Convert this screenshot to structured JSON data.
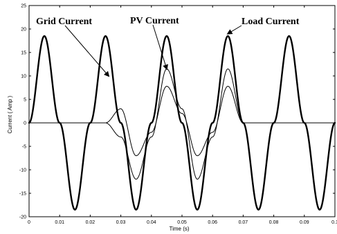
{
  "chart_data": {
    "type": "line",
    "title": "",
    "xlabel": "Time (s)",
    "ylabel": "Current ( Amp )",
    "xlim": [
      0,
      0.1
    ],
    "ylim": [
      -20,
      25
    ],
    "x_ticks": [
      "0",
      "0.01",
      "0.02",
      "0.03",
      "0.04",
      "0.05",
      "0.06",
      "0.07",
      "0.08",
      "0.09",
      "0.1"
    ],
    "y_ticks": [
      "-20",
      "-15",
      "-10",
      "-5",
      "0",
      "5",
      "10",
      "15",
      "20",
      "25"
    ],
    "grid": false,
    "colors": {
      "series": "#000000",
      "axis": "#000000",
      "background": "#ffffff"
    },
    "series": [
      {
        "name": "Load Current",
        "style": "thick",
        "x": [
          0,
          0.005,
          0.01,
          0.015,
          0.02,
          0.025,
          0.03,
          0.035,
          0.04,
          0.045,
          0.05,
          0.055,
          0.06,
          0.065,
          0.07,
          0.075,
          0.08,
          0.085,
          0.09,
          0.095,
          0.1
        ],
        "values": [
          0,
          18.5,
          0,
          -18.5,
          0,
          18.5,
          0,
          -18.5,
          0,
          18.5,
          0,
          -18.5,
          0,
          18.5,
          0,
          -18.5,
          0,
          18.5,
          0,
          -18.5,
          0
        ]
      },
      {
        "name": "Grid Current",
        "style": "thin",
        "x": [
          0,
          0.025,
          0.03,
          0.035,
          0.04,
          0.045,
          0.05,
          0.055,
          0.06,
          0.065,
          0.07,
          0.1
        ],
        "values": [
          0,
          0,
          -3,
          -12,
          -3,
          11.5,
          3,
          -12,
          -3,
          11.5,
          0,
          0
        ]
      },
      {
        "name": "PV Current",
        "style": "thin",
        "x": [
          0,
          0.025,
          0.03,
          0.035,
          0.04,
          0.045,
          0.05,
          0.055,
          0.06,
          0.065,
          0.07,
          0.1
        ],
        "values": [
          0,
          0,
          3,
          -7,
          -2,
          7.8,
          2,
          -7,
          -2,
          7.8,
          0,
          0
        ]
      }
    ],
    "annotations": [
      {
        "text": "Grid Current",
        "target_x": 0.026,
        "target_y": 10
      },
      {
        "text": "PV Current",
        "target_x": 0.045,
        "target_y": 11.5
      },
      {
        "text": "Load Current",
        "target_x": 0.065,
        "target_y": 19
      }
    ]
  }
}
